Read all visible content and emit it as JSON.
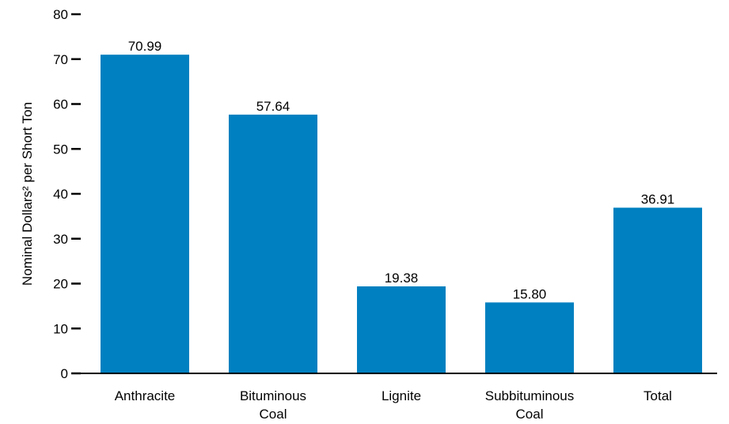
{
  "chart_data": {
    "type": "bar",
    "categories": [
      [
        "Anthracite"
      ],
      [
        "Bituminous",
        "Coal"
      ],
      [
        "Lignite"
      ],
      [
        "Subbituminous",
        "Coal"
      ],
      [
        "Total"
      ]
    ],
    "values": [
      70.99,
      57.64,
      19.38,
      15.8,
      36.91
    ],
    "value_labels": [
      "70.99",
      "57.64",
      "19.38",
      "15.80",
      "36.91"
    ],
    "title": "",
    "xlabel": "",
    "ylabel": "Nominal Dollars² per Short Ton",
    "ylim": [
      0,
      80
    ],
    "yticks": [
      0,
      10,
      20,
      30,
      40,
      50,
      60,
      70,
      80
    ],
    "grid": false,
    "bar_color": "#0080c0"
  }
}
